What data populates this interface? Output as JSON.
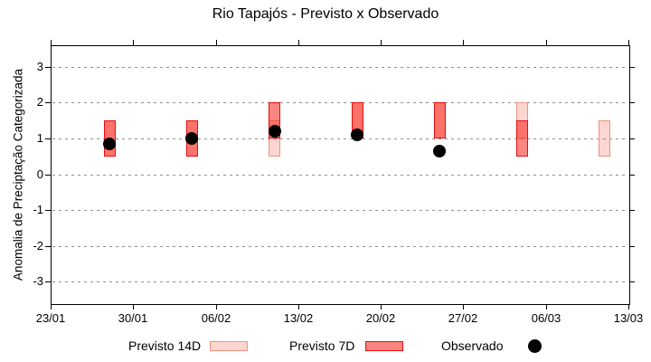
{
  "title": "Rio Tapajós - Previsto x Observado",
  "chart_data": {
    "type": "bar",
    "subtype": "interval-range-bars-with-points",
    "title": "Rio Tapajós - Previsto x Observado",
    "xlabel": "",
    "ylabel": "Anomalia de Preciptação Categorizada",
    "ylim": [
      -3.6,
      3.6
    ],
    "yticks": [
      3,
      2,
      1,
      0,
      -1,
      -2,
      -3
    ],
    "xtick_labels": [
      "23/01",
      "30/01",
      "06/02",
      "13/02",
      "20/02",
      "27/02",
      "06/03",
      "13/03"
    ],
    "xtick_interval_days": 7,
    "x_total_days": 49,
    "grid": "horizontal dashed",
    "legend_position": "bottom",
    "series": [
      {
        "name": "Previsto 14D",
        "kind": "range-bar"
      },
      {
        "name": "Previsto 7D",
        "kind": "range-bar"
      },
      {
        "name": "Observado",
        "kind": "point"
      }
    ],
    "groups": [
      {
        "date": "28/01",
        "x_day": 5,
        "previsto14": [
          0.5,
          1.5
        ],
        "previsto7": [
          0.5,
          1.5
        ],
        "observado": 0.85
      },
      {
        "date": "04/02",
        "x_day": 12,
        "previsto14": [
          0.5,
          1.5
        ],
        "previsto7": [
          0.5,
          1.5
        ],
        "observado": 1.0
      },
      {
        "date": "11/02",
        "x_day": 19,
        "previsto14": [
          0.5,
          1.5
        ],
        "previsto7": [
          1.0,
          2.0
        ],
        "observado": 1.2
      },
      {
        "date": "18/02",
        "x_day": 26,
        "previsto14": [
          1.0,
          2.0
        ],
        "previsto7": [
          1.0,
          2.0
        ],
        "observado": 1.1
      },
      {
        "date": "25/02",
        "x_day": 33,
        "previsto14": [
          1.0,
          2.0
        ],
        "previsto7": [
          1.0,
          2.0
        ],
        "observado": 0.65
      },
      {
        "date": "04/03",
        "x_day": 40,
        "previsto14": [
          1.0,
          2.0
        ],
        "previsto7": [
          0.5,
          1.5
        ],
        "observado": null
      },
      {
        "date": "11/03",
        "x_day": 47,
        "previsto14": [
          0.5,
          1.5
        ],
        "previsto7": null,
        "observado": null
      }
    ]
  },
  "legend": {
    "items": [
      {
        "label": "Previsto 14D",
        "swatch": "pink-range-box"
      },
      {
        "label": "Previsto 7D",
        "swatch": "red-range-box"
      },
      {
        "label": "Observado",
        "swatch": "black-dot"
      }
    ]
  },
  "colors": {
    "previsto14_fill": "rgba(246,70,45,0.22)",
    "previsto14_border": "#f1907d",
    "previsto7_fill": "rgba(250,32,22,0.55)",
    "previsto7_border": "#e60e0e",
    "observado": "#000000",
    "grid": "#909090",
    "axis": "#000000",
    "background": "#ffffff"
  }
}
